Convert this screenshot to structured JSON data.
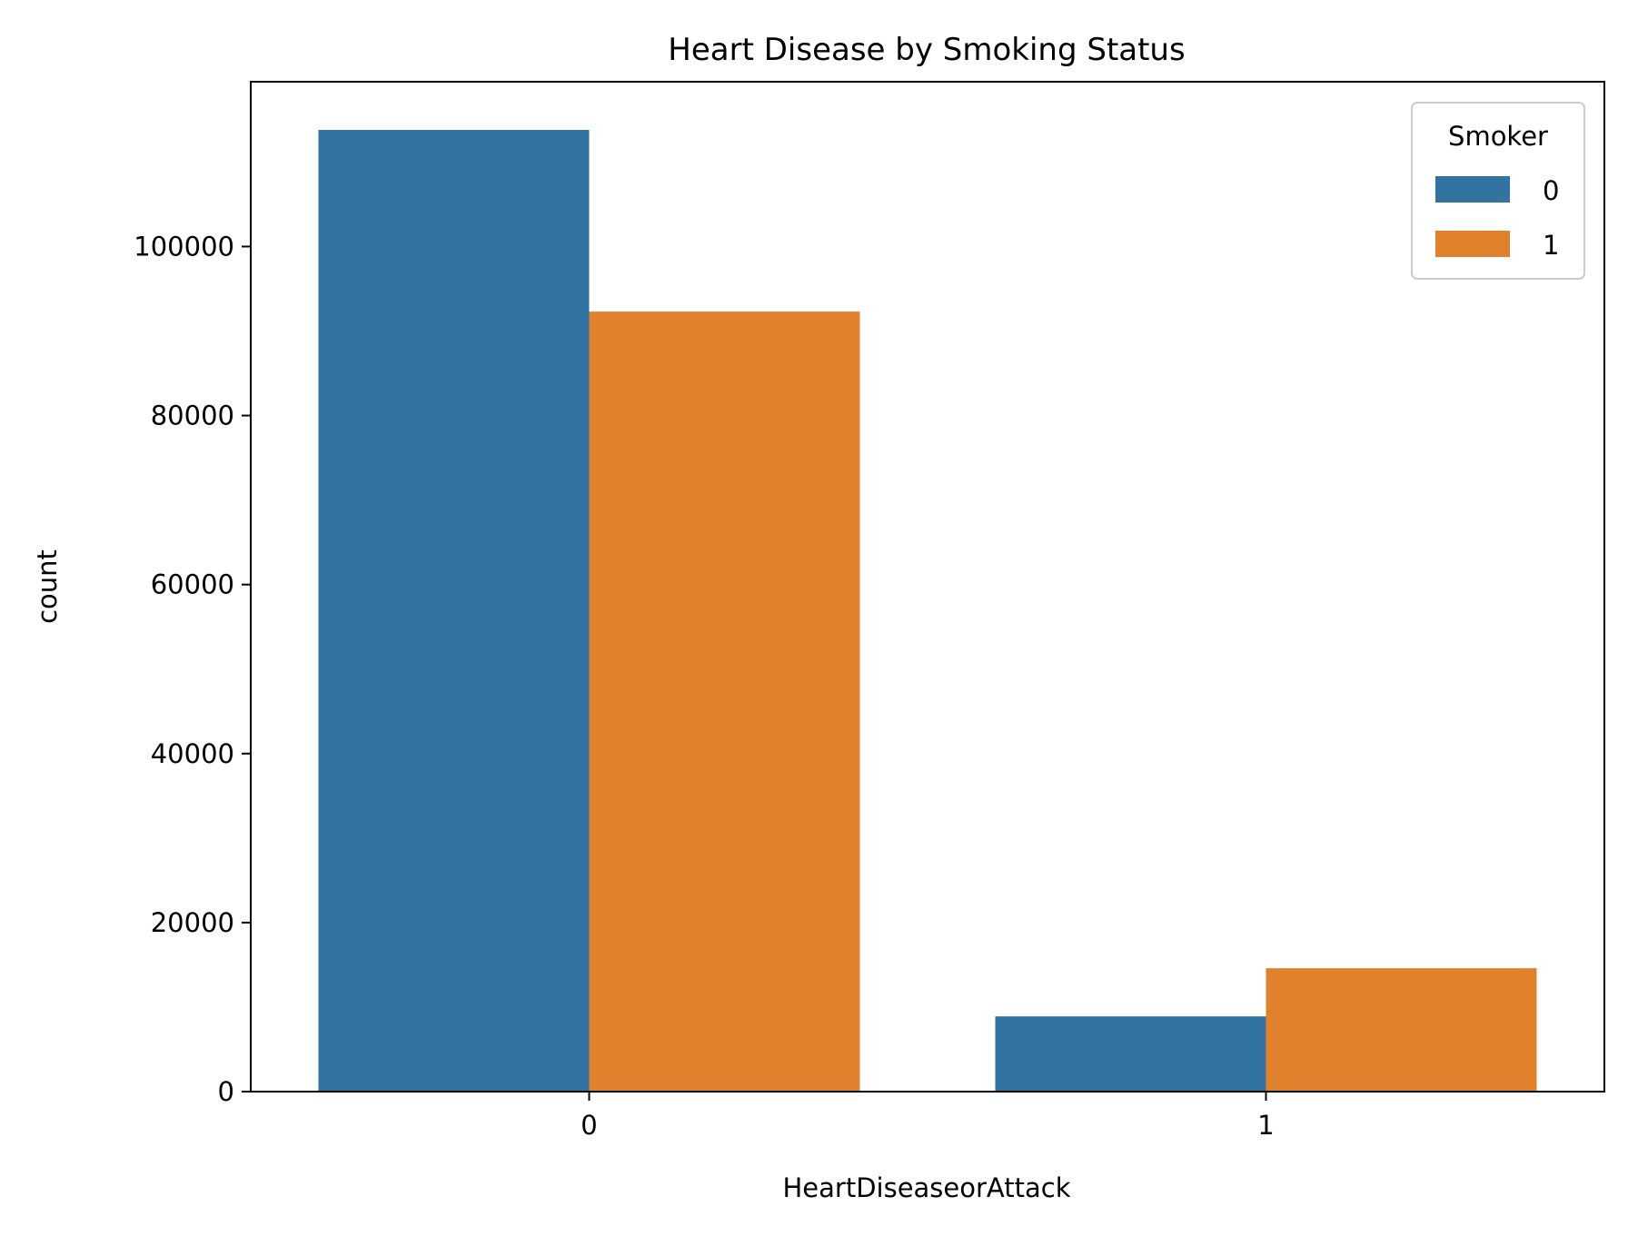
{
  "chart_data": {
    "type": "bar",
    "title": "Heart Disease by Smoking Status",
    "xlabel": "HeartDiseaseorAttack",
    "ylabel": "count",
    "categories": [
      "0",
      "1"
    ],
    "series": [
      {
        "name": "0",
        "color": "#3274a1",
        "values": [
          113800,
          8900
        ]
      },
      {
        "name": "1",
        "color": "#e1812c",
        "values": [
          92300,
          14600
        ]
      }
    ],
    "ylim": [
      0,
      119500
    ],
    "yticks": [
      0,
      20000,
      40000,
      60000,
      80000,
      100000
    ],
    "legend": {
      "title": "Smoker",
      "placement": "top-right"
    },
    "grid": false
  }
}
